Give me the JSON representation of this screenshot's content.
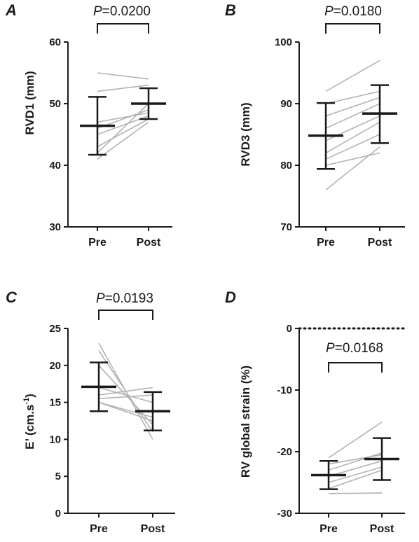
{
  "chart_data": [
    {
      "panel": "A",
      "type": "scatter",
      "categories": [
        "Pre",
        "Post"
      ],
      "ylabel": "RVD1 (mm)",
      "ylim": [
        30,
        60
      ],
      "yticks": [
        "30",
        "40",
        "50",
        "60"
      ],
      "p_prefix": "P",
      "p_value": "=0.0200",
      "individual_lines": [
        [
          55,
          54
        ],
        [
          52,
          53
        ],
        [
          47,
          48.5
        ],
        [
          46,
          49
        ],
        [
          45,
          48
        ],
        [
          43,
          47.5
        ],
        [
          42,
          50
        ],
        [
          41,
          47
        ]
      ],
      "mean": [
        46.4,
        50.0
      ],
      "sd_low": [
        41.7,
        47.5
      ],
      "sd_high": [
        51.1,
        52.5
      ]
    },
    {
      "panel": "B",
      "type": "scatter",
      "categories": [
        "Pre",
        "Post"
      ],
      "ylabel": "RVD3 (mm)",
      "ylim": [
        70,
        100
      ],
      "yticks": [
        "70",
        "80",
        "90",
        "100"
      ],
      "p_prefix": "P",
      "p_value": "=0.0180",
      "individual_lines": [
        [
          92,
          97
        ],
        [
          90,
          92
        ],
        [
          88,
          91
        ],
        [
          86,
          90
        ],
        [
          84,
          88
        ],
        [
          82,
          87
        ],
        [
          81,
          85
        ],
        [
          80,
          82
        ],
        [
          76,
          83
        ]
      ],
      "mean": [
        84.8,
        88.4
      ],
      "sd_low": [
        79.4,
        83.6
      ],
      "sd_high": [
        90.1,
        93.0
      ]
    },
    {
      "panel": "C",
      "type": "scatter",
      "categories": [
        "Pre",
        "Post"
      ],
      "ylabel_main": "E’ (cm.s",
      "ylabel_sup": "-1",
      "ylabel_end": ")",
      "ylim": [
        0,
        25
      ],
      "yticks": [
        "0",
        "5",
        "10",
        "15",
        "20",
        "25"
      ],
      "p_prefix": "P",
      "p_value": "=0.0193",
      "individual_lines": [
        [
          23,
          10
        ],
        [
          22,
          11
        ],
        [
          20,
          12
        ],
        [
          17,
          15
        ],
        [
          16,
          17
        ],
        [
          15.5,
          16
        ],
        [
          15,
          13
        ],
        [
          15,
          12.5
        ]
      ],
      "mean": [
        17.1,
        13.8
      ],
      "sd_low": [
        13.8,
        11.2
      ],
      "sd_high": [
        20.4,
        16.4
      ]
    },
    {
      "panel": "D",
      "type": "scatter",
      "categories": [
        "Pre",
        "Post"
      ],
      "ylabel": "RV global strain (%)",
      "ylim": [
        -30,
        0
      ],
      "yticks": [
        "-30",
        "-20",
        "-10",
        "0"
      ],
      "reference_line": 0,
      "p_prefix": "P",
      "p_value": "=0.0168",
      "individual_lines": [
        [
          -21,
          -15.2
        ],
        [
          -22,
          -20.5
        ],
        [
          -23,
          -20.2
        ],
        [
          -24,
          -21.5
        ],
        [
          -25,
          -22.5
        ],
        [
          -26,
          -23
        ],
        [
          -26.8,
          -26.7
        ]
      ],
      "mean": [
        -23.8,
        -21.2
      ],
      "sd_low": [
        -26.1,
        -24.6
      ],
      "sd_high": [
        -21.5,
        -17.8
      ]
    }
  ],
  "colors": {
    "individual": "#b3b3b3",
    "mean_sd": "#1a1a1a",
    "axis": "#1a1a1a"
  }
}
